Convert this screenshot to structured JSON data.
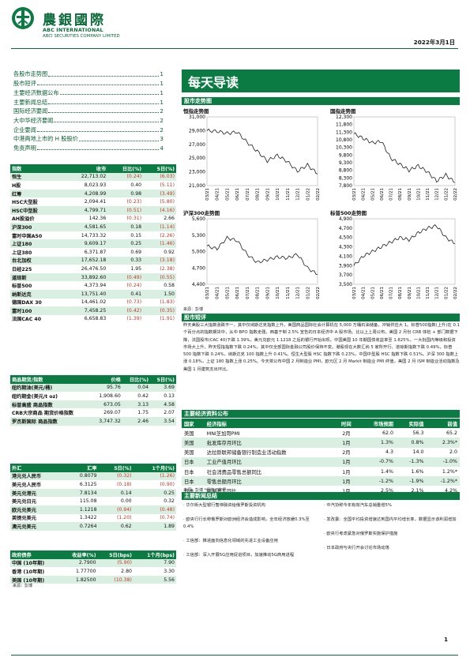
{
  "header": {
    "brand_cn": "農銀國際",
    "brand_en1": "ABC INTERNATIONAL",
    "brand_en2": "ABCI SECURITIES COMPANY LIMITED",
    "date": "2022年3月1日"
  },
  "toc": [
    {
      "label": "各股市走势图",
      "page": "1"
    },
    {
      "label": "股市短评",
      "page": "1"
    },
    {
      "label": "主要经济数据公布",
      "page": "1"
    },
    {
      "label": "主要新闻总结",
      "page": "1"
    },
    {
      "label": "国际经济要闻",
      "page": "2"
    },
    {
      "label": "大中华经济要闻",
      "page": "2"
    },
    {
      "label": "企业要闻",
      "page": "2"
    },
    {
      "label": "中港两地上市的 H 股股价",
      "page": "3"
    },
    {
      "label": "免责声明",
      "page": "4"
    }
  ],
  "title": "每天导读",
  "index_table": {
    "headers": [
      "指数",
      "收市",
      "日比(%)",
      "5日(%)"
    ],
    "rows": [
      [
        "恒生",
        "22,713.02",
        "(0.24)",
        "(6.03)"
      ],
      [
        "H股",
        "8,023.93",
        "0.40",
        "(5.11)"
      ],
      [
        "红筹",
        "4,208.99",
        "0.98",
        "(3.49)"
      ],
      [
        "HSC大型股",
        "2,094.41",
        "(0.23)",
        "(5.80)"
      ],
      [
        "HSC中型股",
        "4,799.71",
        "(0.51)",
        "(4.16)"
      ],
      [
        "AH股溢价",
        "142.36",
        "(0.31)",
        "2.66"
      ],
      [
        "沪深300",
        "4,581.65",
        "0.18",
        "(1.14)"
      ],
      [
        "富时中国A50",
        "14,733.32",
        "0.15",
        "(2.26)"
      ],
      [
        "上证180",
        "9,609.17",
        "0.25",
        "(1.46)"
      ],
      [
        "上证380",
        "6,371.87",
        "0.69",
        "0.92"
      ],
      [
        "台北加权",
        "17,652.18",
        "0.33",
        "(3.18)"
      ],
      [
        "日经225",
        "26,476.50",
        "1.95",
        "(2.38)"
      ],
      [
        "道琼斯",
        "33,892.60",
        "(0.49)",
        "(0.55)"
      ],
      [
        "标普500",
        "4,373.94",
        "(0.24)",
        "0.58"
      ],
      [
        "纳斯达克",
        "13,751.40",
        "0.41",
        "1.50"
      ],
      [
        "德国DAX 30",
        "14,461.02",
        "(0.73)",
        "(1.83)"
      ],
      [
        "富时100",
        "7,458.25",
        "(0.42)",
        "(0.35)"
      ],
      [
        "法国CAC 40",
        "6,658.83",
        "(1.39)",
        "(1.91)"
      ]
    ]
  },
  "commodity_table": {
    "headers": [
      "商品期货/指数",
      "价格",
      "日比(%)",
      "5日(%)"
    ],
    "rows": [
      [
        "纽约期油(美元/桶)",
        "95.76",
        "0.04",
        "3.69"
      ],
      [
        "纽约期金(美元/t oz)",
        "1,908.60",
        "0.42",
        "0.13"
      ],
      [
        "标普高盛 商品指数",
        "673.05",
        "3.13",
        "4.58"
      ],
      [
        "CRB大宗商品 期货价格指数",
        "269.07",
        "1.75",
        "2.07"
      ],
      [
        "罗杰斯国际 商品指数",
        "3,747.32",
        "2.46",
        "3.54"
      ]
    ]
  },
  "fx_table": {
    "headers": [
      "外汇",
      "汇率",
      "5日(%)",
      "1个月(%)"
    ],
    "rows": [
      [
        "港元兑人民币",
        "0.8079",
        "(0.32)",
        "(1.26)"
      ],
      [
        "美元兑人民币",
        "6.3125",
        "(0.18)",
        "(0.90)"
      ],
      [
        "美元兑港元",
        "7.8134",
        "0.14",
        "0.25"
      ],
      [
        "美元兑日元",
        "115.08",
        "0.00",
        "0.32"
      ],
      [
        "欧元兑美元",
        "1.1218",
        "(0.94)",
        "(0.48)"
      ],
      [
        "英镑兑美元",
        "1.3422",
        "(1.20)",
        "(0.74)"
      ],
      [
        "澳元兑美元",
        "0.7264",
        "0.62",
        "1.89"
      ]
    ]
  },
  "bond_table": {
    "headers": [
      "政府债券",
      "收益率(%)",
      "5日(bps)",
      "1个月(bps)"
    ],
    "rows": [
      [
        "中国 (10年期)",
        "2.7900",
        "(5.90)",
        "7.90"
      ],
      [
        "香港 (10年期)",
        "1.77700",
        "2.80",
        "3.30"
      ],
      [
        "美国 (10年期)",
        "1.82500",
        "(10.38)",
        "5.56"
      ]
    ]
  },
  "source_label": "来源：彭博",
  "charts": {
    "section_label": "股市走势图",
    "x_ticks": [
      "03/21",
      "04/21",
      "05/21",
      "06/21",
      "07/21",
      "08/21",
      "09/21",
      "10/21",
      "11/21",
      "12/21",
      "01/22",
      "02/22"
    ],
    "hsi": {
      "title": "恒指走势图",
      "y_ticks": [
        "31,000",
        "29,000",
        "27,000",
        "25,000",
        "23,000",
        "21,000"
      ]
    },
    "hscei": {
      "title": "国指走势图",
      "y_ticks": [
        "12,300",
        "11,800",
        "11,300",
        "10,800",
        "10,300",
        "9,800",
        "9,300",
        "8,800",
        "8,300",
        "7,800"
      ]
    },
    "csi300": {
      "title": "沪深300走势图",
      "y_ticks": [
        "5,600",
        "5,300",
        "5,000",
        "4,700",
        "4,400"
      ]
    },
    "spx": {
      "title": "标普500走势图",
      "y_ticks": [
        "4,900",
        "4,700",
        "4,500",
        "4,300",
        "4,100",
        "3,900",
        "3,700",
        "3,500"
      ]
    }
  },
  "chart_data": [
    {
      "type": "line",
      "title": "恒指走势图",
      "x": [
        "03/21",
        "04/21",
        "05/21",
        "06/21",
        "07/21",
        "08/21",
        "09/21",
        "10/21",
        "11/21",
        "12/21",
        "01/22",
        "02/22"
      ],
      "ylim": [
        21000,
        31000
      ],
      "series": [
        {
          "values": [
            29000,
            28900,
            28600,
            28800,
            27300,
            26000,
            24600,
            25400,
            24500,
            23100,
            24000,
            22700
          ]
        }
      ]
    },
    {
      "type": "line",
      "title": "国指走势图",
      "x": [
        "03/21",
        "04/21",
        "05/21",
        "06/21",
        "07/21",
        "08/21",
        "09/21",
        "10/21",
        "11/21",
        "12/21",
        "01/22",
        "02/22"
      ],
      "ylim": [
        7800,
        12300
      ],
      "series": [
        {
          "values": [
            11200,
            10900,
            10600,
            10700,
            9600,
            9200,
            8800,
            9100,
            8700,
            8100,
            8500,
            8000
          ]
        }
      ]
    },
    {
      "type": "line",
      "title": "沪深300走势图",
      "x": [
        "03/21",
        "04/21",
        "05/21",
        "06/21",
        "07/21",
        "08/21",
        "09/21",
        "10/21",
        "11/21",
        "12/21",
        "01/22",
        "02/22"
      ],
      "ylim": [
        4400,
        5600
      ],
      "series": [
        {
          "values": [
            5100,
            5050,
            5250,
            5200,
            4950,
            4800,
            4850,
            4900,
            4880,
            4950,
            4700,
            4580
          ]
        }
      ]
    },
    {
      "type": "line",
      "title": "标普500走势图",
      "x": [
        "03/21",
        "04/21",
        "05/21",
        "06/21",
        "07/21",
        "08/21",
        "09/21",
        "10/21",
        "11/21",
        "12/21",
        "01/22",
        "02/22"
      ],
      "ylim": [
        3500,
        4900
      ],
      "series": [
        {
          "values": [
            3900,
            4100,
            4200,
            4300,
            4400,
            4500,
            4450,
            4600,
            4700,
            4750,
            4500,
            4370
          ]
        }
      ]
    }
  ],
  "comment": {
    "title": "股市短评",
    "text": "昨天美股三大指数涨跌不一，其中仅纳斯达克指数上升。美国商品国际社会计算机在 5,000 万桶石油储备，冲销供应大 1。标普500指数(上升)在 0.1 个百分点的指数期货中，从中 BPO 指数走强，西基于制 2.5% 宣告的日本经济中 A 股市场。比以上上周公布。美国 2 月份 CRB 体检 + 部门数据下降，法国股市(CAC 40)下跌 1.39%，美元兑欧元 1.1218 之后的银行开始出现。中国美国 10 年期国债收益率至 1.825%，一大批国内等级和投资市场大上升。昨天恒指指数下跌 0.24%，其中仅全部国际金融公司股价保持不变。港股现在大数汇纳 5 家所开行、道琼斯指数下跌 0.49%，标普 500 指数下跌 0.24%，纳斯达克 100 指数上升 0.41%。恒生大型股 HSC 指数下跌 0.23%，中国中型股 HSC 指数下跌 0.51%。沪深 300 指数上涨 0.18%，上证 180 指数上涨 0.25%。今天将公布中国 2 月制造业 PMI，欧元区 2 月 Markit 制造业 PMI 终值，美国 2 月 ISM 制造业活动指数及美国 1 月建筑支出环比。"
  },
  "eco": {
    "title": "主要经济资料公布",
    "headers": [
      "国家",
      "经济指标",
      "时间",
      "市场预期",
      "实际值",
      "前值"
    ],
    "rows": [
      [
        "美国",
        "MNI芝加哥PMI",
        "2月",
        "62.0",
        "56.3",
        "65.2"
      ],
      [
        "美国",
        "批发库存月环比",
        "1月",
        "1.3%",
        "0.8%",
        "2.3%*"
      ],
      [
        "美国",
        "达拉斯联邦储备银行制造业活动指数",
        "2月",
        "4.3",
        "14.0",
        "2.0"
      ],
      [
        "日本",
        "工业产值月环比",
        "1月",
        "-0.7%",
        "-1.3%",
        "-1.0%"
      ],
      [
        "日本",
        "社会消费品零售总额同比",
        "1月",
        "1.4%",
        "1.6%",
        "1.2%*"
      ],
      [
        "日本",
        "零售总额月环比",
        "1月",
        "-1.2%",
        "-1.9%",
        "-1.2%*"
      ],
      [
        "日本",
        "新屋开工同比",
        "1月",
        "2.5%",
        "2.1%",
        "4.2%"
      ]
    ],
    "source": "来源：彭博  *经修订数据"
  },
  "news": {
    "title": "主要新闻总结",
    "items": [
      "华尔街大型银行暂停融资给俄罗斯投资机构",
      "中汽协称今年有效汽车总销量增5%",
      "欧央行行长称俄罗斯对欧洲经济会造成影响，全年经济放缓0.3%至0.4%",
      "发改委：全国平均投资增速达到国内平均增长率，数据显示该利润增加",
      "工信部：推进面向信息化领域的先进工业设备应用",
      "欧央行考虑紧急对俄罗斯实施保护措施",
      "工信部：深入开展5G应用促进项目，加速推动5G商用进程",
      "日本政府与央行开会讨论市场动荡"
    ]
  },
  "page_no": "1"
}
